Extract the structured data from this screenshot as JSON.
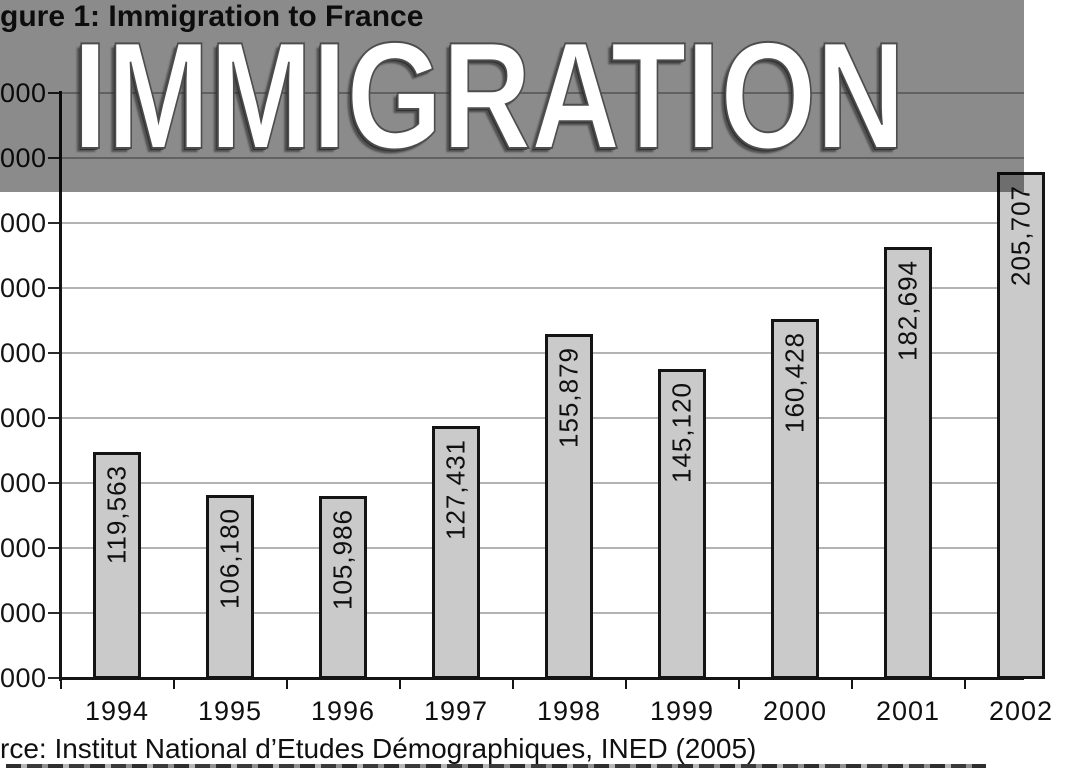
{
  "overlay": {
    "title": "IMMIGRATION"
  },
  "figure": {
    "caption_visible": "gure 1: Immigration to France",
    "source_visible": "rce: Institut National d’Etudes Démographiques, INED (2005)"
  },
  "chart_data": {
    "type": "bar",
    "title": "gure 1: Immigration to France",
    "categories": [
      "1994",
      "1995",
      "1996",
      "1997",
      "1998",
      "1999",
      "2000",
      "2001",
      "2002"
    ],
    "values": [
      119563,
      106180,
      105986,
      127431,
      155879,
      145120,
      160428,
      182694,
      205707
    ],
    "bar_labels": [
      "119,563",
      "106,180",
      "105,986",
      "127,431",
      "155,879",
      "145,120",
      "160,428",
      "182,694",
      "205,707"
    ],
    "xlabel": "",
    "ylabel": "",
    "y_tick_labels_visible": [
      "000",
      "000",
      "000",
      "000",
      "000",
      "000",
      "000",
      "000",
      "000",
      "000"
    ],
    "ylim": [
      50000,
      235000
    ],
    "ytick_step": 20000,
    "grid": true,
    "legend": "none",
    "source_note": "rce: Institut National d’Etudes Démographiques, INED (2005)"
  },
  "colors": {
    "bar_fill": "#cacaca",
    "bar_border": "#141414",
    "gridline": "#b3b3b3",
    "axis": "#151515",
    "text": "#0d0d0d",
    "band_overlay": "rgba(0,0,0,0.455)",
    "overlay_title": "#ffffff"
  }
}
